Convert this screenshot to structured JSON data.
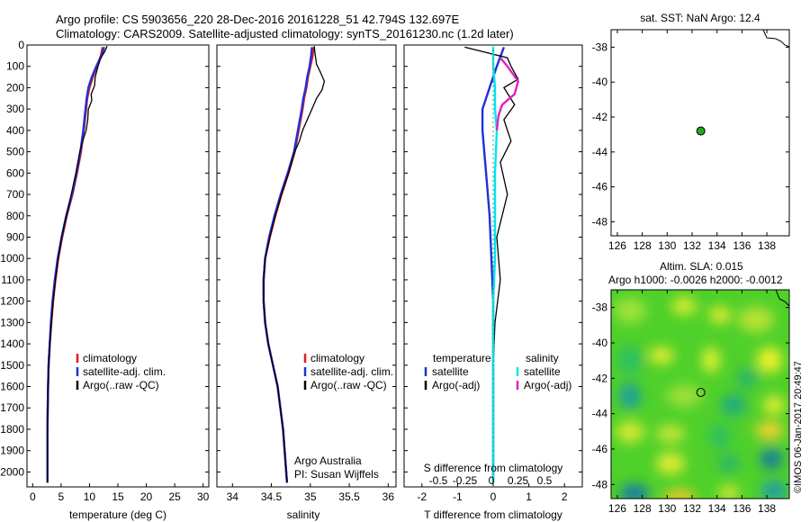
{
  "header": {
    "line1": "Argo profile: CS 5903656_220 28-Dec-2016 20161228_51 42.794S 132.697E",
    "line2": "Climatology: CARS2009. Satellite-adjusted climatology: synTS_20161230.nc (1.2d later)"
  },
  "credit": "Argo Australia",
  "pi": "PI: Susan Wijffels",
  "watermark": "©IMOS 06-Jan-2017 20:49:47",
  "chart_data": [
    {
      "type": "line",
      "id": "temperature",
      "xlabel": "temperature (deg C)",
      "xlim": [
        -1,
        31
      ],
      "ylim": [
        2070,
        0
      ],
      "yticks": [
        0,
        100,
        200,
        300,
        400,
        500,
        600,
        700,
        800,
        900,
        1000,
        1100,
        1200,
        1300,
        1400,
        1500,
        1600,
        1700,
        1800,
        1900,
        2000
      ],
      "xticks": [
        0,
        5,
        10,
        15,
        20,
        25,
        30
      ],
      "legend": [
        "climatology",
        "satellite-adj. clim.",
        "Argo(..raw -QC)"
      ],
      "series": [
        {
          "name": "climatology",
          "color": "#e31a1c",
          "x": [
            12.3,
            12.0,
            11.3,
            10.6,
            10.0,
            9.6,
            9.4,
            9.0,
            8.5,
            7.8,
            7.0,
            6.0,
            5.2,
            4.5,
            4.0,
            3.6,
            3.3,
            3.0,
            2.8,
            2.7,
            2.6,
            2.6
          ],
          "y": [
            10,
            50,
            100,
            150,
            200,
            250,
            300,
            400,
            500,
            600,
            700,
            800,
            900,
            1000,
            1100,
            1200,
            1300,
            1400,
            1500,
            1600,
            1800,
            2050
          ]
        },
        {
          "name": "satellite-adj. clim.",
          "color": "#1f31d6",
          "x": [
            12.6,
            12.1,
            11.2,
            10.4,
            9.8,
            9.5,
            9.3,
            8.9,
            8.4,
            7.7,
            6.9,
            5.9,
            5.1,
            4.4,
            3.9,
            3.5,
            3.2,
            3.0,
            2.8,
            2.7,
            2.6,
            2.6
          ],
          "y": [
            10,
            50,
            100,
            150,
            200,
            250,
            300,
            400,
            500,
            600,
            700,
            800,
            900,
            1000,
            1100,
            1200,
            1300,
            1400,
            1500,
            1600,
            1800,
            2050
          ]
        },
        {
          "name": "Argo(..raw -QC)",
          "color": "#000000",
          "x": [
            13.1,
            12.7,
            12.0,
            11.5,
            11.0,
            10.9,
            10.3,
            10.4,
            9.8,
            9.7,
            9.4,
            8.8,
            8.3,
            7.6,
            6.8,
            5.9,
            5.1,
            4.5,
            4.0,
            3.6,
            3.3,
            3.0,
            2.8,
            2.7,
            2.6,
            2.6
          ],
          "y": [
            5,
            30,
            60,
            100,
            150,
            190,
            230,
            260,
            300,
            350,
            400,
            450,
            500,
            600,
            700,
            800,
            900,
            1000,
            1100,
            1200,
            1300,
            1400,
            1500,
            1600,
            1800,
            2050
          ]
        }
      ]
    },
    {
      "type": "line",
      "id": "salinity",
      "xlabel": "salinity",
      "xlim": [
        33.8,
        36.1
      ],
      "ylim": [
        2070,
        0
      ],
      "xticks": [
        34,
        34.5,
        35,
        35.5,
        36
      ],
      "legend": [
        "climatology",
        "satellite-adj. clim.",
        "Argo(..raw -QC)"
      ],
      "series": [
        {
          "name": "climatology",
          "color": "#e31a1c",
          "x": [
            35.04,
            35.03,
            35.0,
            34.97,
            34.95,
            34.92,
            34.9,
            34.85,
            34.8,
            34.72,
            34.63,
            34.55,
            34.48,
            34.42,
            34.4,
            34.4,
            34.42,
            34.46,
            34.52,
            34.58,
            34.65,
            34.7
          ],
          "y": [
            10,
            50,
            100,
            150,
            200,
            250,
            300,
            400,
            500,
            600,
            700,
            800,
            900,
            1000,
            1100,
            1200,
            1300,
            1400,
            1500,
            1600,
            1800,
            2050
          ]
        },
        {
          "name": "satellite-adj. clim.",
          "color": "#1f31d6",
          "x": [
            35.02,
            35.01,
            34.99,
            34.96,
            34.94,
            34.91,
            34.89,
            34.84,
            34.79,
            34.71,
            34.62,
            34.54,
            34.47,
            34.42,
            34.4,
            34.4,
            34.42,
            34.46,
            34.52,
            34.58,
            34.65,
            34.7
          ],
          "y": [
            10,
            50,
            100,
            150,
            200,
            250,
            300,
            400,
            500,
            600,
            700,
            800,
            900,
            1000,
            1100,
            1200,
            1300,
            1400,
            1500,
            1600,
            1800,
            2050
          ]
        },
        {
          "name": "Argo(..raw -QC)",
          "color": "#000000",
          "x": [
            35.05,
            35.06,
            35.08,
            35.12,
            35.18,
            35.15,
            35.08,
            35.02,
            34.96,
            34.9,
            34.86,
            34.8,
            34.72,
            34.63,
            34.55,
            34.48,
            34.42,
            34.4,
            34.4,
            34.42,
            34.46,
            34.52,
            34.58,
            34.65,
            34.7
          ],
          "y": [
            5,
            40,
            90,
            120,
            170,
            210,
            250,
            300,
            350,
            400,
            450,
            500,
            600,
            700,
            800,
            900,
            1000,
            1100,
            1200,
            1300,
            1400,
            1500,
            1600,
            1800,
            2050
          ]
        }
      ]
    },
    {
      "type": "line",
      "id": "difference",
      "xlabel": "T difference from climatology",
      "xlabel_top": "S difference from climatology",
      "xlim": [
        -2.5,
        2.5
      ],
      "xticks": [
        -2,
        -1,
        0,
        1,
        2
      ],
      "xticks_top": [
        "-0.5",
        "-0.25",
        "0",
        "0.25",
        "0.5"
      ],
      "ylim": [
        2070,
        0
      ],
      "legend_headers": [
        "temperature",
        "salinity"
      ],
      "legend_temperature": [
        "satellite",
        "Argo(-adj)"
      ],
      "legend_salinity": [
        "satellite",
        "Argo(-adj)"
      ],
      "series": [
        {
          "name": "satellite",
          "color": "#1f31d6",
          "x": [
            0.3,
            0.1,
            -0.1,
            -0.3,
            -0.3,
            -0.2,
            -0.1,
            -0.05,
            0,
            0,
            0,
            0
          ],
          "y": [
            10,
            100,
            200,
            300,
            400,
            600,
            800,
            1000,
            1200,
            1400,
            1600,
            2050
          ]
        },
        {
          "name": "Argo(-adj)",
          "color": "#000000",
          "x": [
            -0.8,
            0.4,
            0.5,
            0.7,
            0.3,
            0.6,
            0.3,
            0.5,
            0.2,
            0.4,
            0.1,
            0.2,
            0.05,
            0
          ],
          "y": [
            10,
            60,
            100,
            160,
            200,
            280,
            350,
            450,
            550,
            700,
            900,
            1100,
            1300,
            1500
          ]
        },
        {
          "name": "satellite",
          "color": "#00e5ee",
          "x": [
            0.0,
            0.0,
            0.05,
            0.05,
            0.1,
            0.05,
            0.05,
            0.05,
            0.0,
            0.0,
            0.0
          ],
          "y": [
            10,
            100,
            200,
            300,
            400,
            600,
            800,
            1000,
            1200,
            1600,
            2050
          ]
        },
        {
          "name": "Argo(-adj)",
          "color": "#e020c0",
          "x": [
            0.2,
            0.4,
            0.7,
            0.6,
            0.25,
            0.15,
            0.1
          ],
          "y": [
            60,
            100,
            170,
            230,
            280,
            330,
            400
          ]
        }
      ]
    },
    {
      "type": "scatter",
      "id": "sst_map",
      "title": "sat. SST: NaN Argo: 12.4",
      "xlim": [
        125.5,
        139.8
      ],
      "ylim": [
        -48.8,
        -37
      ],
      "xticks": [
        126,
        128,
        130,
        132,
        134,
        136,
        138
      ],
      "yticks": [
        -38,
        -40,
        -42,
        -44,
        -46,
        -48
      ],
      "points": [
        {
          "x": 132.7,
          "y": -42.8,
          "color": "#22aa22"
        }
      ]
    },
    {
      "type": "heatmap",
      "id": "sla_map",
      "title1": "Altim. SLA: 0.015",
      "title2": "Argo h1000: -0.0026 h2000: -0.0012",
      "xlim": [
        125.5,
        139.8
      ],
      "ylim": [
        -48.8,
        -37
      ],
      "xticks": [
        126,
        128,
        130,
        132,
        134,
        136,
        138
      ],
      "yticks": [
        -38,
        -40,
        -42,
        -44,
        -46,
        -48
      ],
      "points": [
        {
          "x": 132.7,
          "y": -42.8
        }
      ]
    }
  ]
}
